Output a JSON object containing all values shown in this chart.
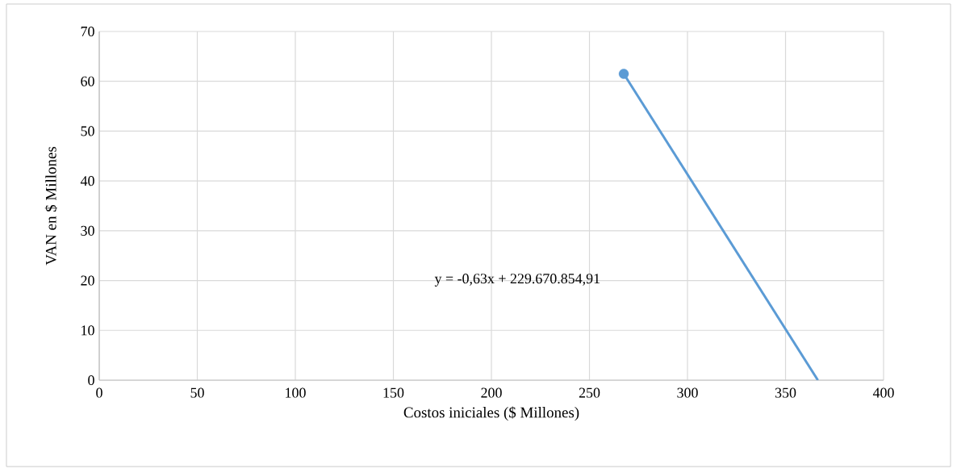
{
  "chart_data": {
    "type": "line",
    "xlabel": "Costos iniciales ($ Millones)",
    "ylabel": "VAN en $ Millones",
    "x": [
      267.5,
      366.5
    ],
    "series": [
      {
        "type": "scatter",
        "x": [
          267.5
        ],
        "values": [
          61.5
        ],
        "color": "#5b9bd5",
        "marker": "circle"
      },
      {
        "values": [
          61.5,
          0
        ],
        "color": "#5b9bd5",
        "marker": "none"
      }
    ],
    "annotations": [
      "y = -0,63x + 229.670.854,91"
    ],
    "xlim": [
      0,
      400
    ],
    "xticks": [
      0,
      50,
      100,
      150,
      200,
      250,
      300,
      350,
      400
    ],
    "ylim": [
      0,
      70
    ],
    "yticks": [
      0,
      10,
      20,
      30,
      40,
      50,
      60,
      70
    ],
    "grid": true
  }
}
